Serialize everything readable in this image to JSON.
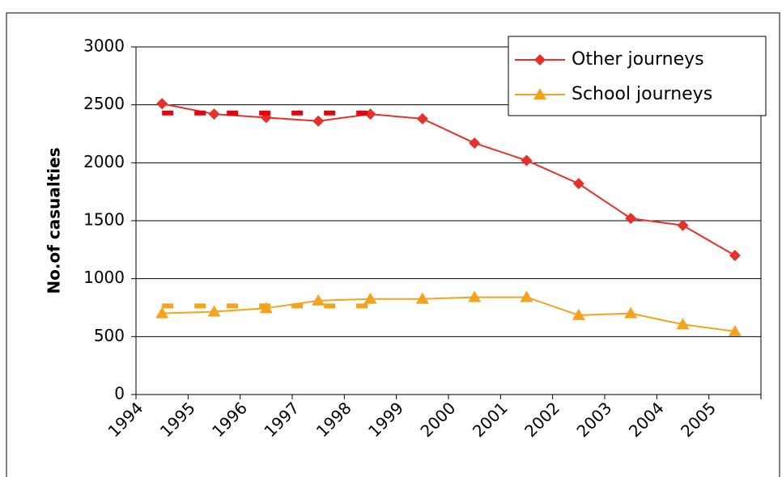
{
  "chart_data": {
    "type": "line",
    "y_label": "No.of casualties",
    "x": [
      1994.5,
      1995.5,
      1996.5,
      1997.5,
      1998.5,
      1999.5,
      2000.5,
      2001.5,
      2002.5,
      2003.5,
      2004.5,
      2005.5
    ],
    "xlim": [
      1994,
      2006
    ],
    "xticks": [
      1994,
      1995,
      1996,
      1997,
      1998,
      1999,
      2000,
      2001,
      2002,
      2003,
      2004,
      2005
    ],
    "ylim": [
      0,
      3000
    ],
    "yticks": [
      0,
      500,
      1000,
      1500,
      2000,
      2500,
      3000
    ],
    "grid": true,
    "legend": "upper right",
    "series": [
      {
        "name": "Other journeys",
        "color": "#e8302a",
        "marker": "diamond",
        "values": [
          2510,
          2420,
          2390,
          2360,
          2420,
          2380,
          2170,
          2020,
          1820,
          1520,
          1460,
          1200
        ]
      },
      {
        "name": "School journeys",
        "color": "#f5a21c",
        "marker": "triangle",
        "values": [
          700,
          715,
          745,
          810,
          825,
          825,
          840,
          840,
          685,
          700,
          605,
          545
        ]
      },
      {
        "color": "#e8000b",
        "dashed": true,
        "x": [
          1994.5,
          1998.5
        ],
        "values": [
          2430,
          2430
        ]
      },
      {
        "color": "#f5a21c",
        "dashed": true,
        "x": [
          1994.5,
          1998.5
        ],
        "values": [
          765,
          765
        ]
      }
    ]
  }
}
